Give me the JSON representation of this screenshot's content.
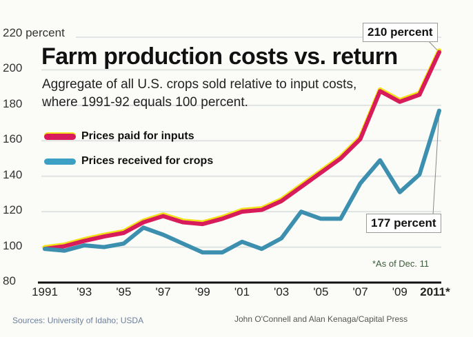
{
  "chart_data": {
    "type": "line",
    "title": "Farm production costs vs. return",
    "subtitle": "Aggregate of all U.S. crops sold relative to input costs, where 1991-92 equals 100 percent.",
    "ylabel": "220 percent",
    "ylim": [
      80,
      220
    ],
    "yticks": [
      80,
      100,
      120,
      140,
      160,
      180,
      200
    ],
    "ytick_labels": [
      "80",
      "100",
      "120",
      "140",
      "160",
      "180",
      "200"
    ],
    "ytop_label": "220 percent",
    "xlim": [
      1991,
      2011
    ],
    "xticks": [
      1991,
      1993,
      1995,
      1997,
      1999,
      2001,
      2003,
      2005,
      2007,
      2009,
      2011
    ],
    "xtick_labels": [
      "1991",
      "'93",
      "'95",
      "'97",
      "'99",
      "'01",
      "'03",
      "'05",
      "'07",
      "'09",
      "2011*"
    ],
    "x": [
      1991,
      1992,
      1993,
      1994,
      1995,
      1996,
      1997,
      1998,
      1999,
      2000,
      2001,
      2002,
      2003,
      2004,
      2005,
      2006,
      2007,
      2008,
      2009,
      2010,
      2011
    ],
    "grid": true,
    "legend_position": "top-left",
    "series": [
      {
        "name": "Prices paid for inputs",
        "color": "#d81b5a",
        "outline": "#f2e21c",
        "values": [
          99,
          100.5,
          103.5,
          106,
          108,
          114,
          117.5,
          114,
          113,
          116,
          120,
          121,
          126,
          134,
          142,
          150,
          161,
          188,
          182,
          186,
          210
        ]
      },
      {
        "name": "Prices received for crops",
        "color": "#3c8fae",
        "values": [
          99,
          98,
          101,
          100,
          102,
          111,
          107,
          102,
          97,
          97,
          103,
          99,
          105,
          120,
          116,
          116,
          136,
          149,
          131,
          141,
          177
        ]
      }
    ],
    "annotations": [
      {
        "text": "210 percent",
        "series": 0,
        "x": 2011
      },
      {
        "text": "177 percent",
        "series": 1,
        "x": 2011
      }
    ],
    "note": "*As of Dec. 11",
    "source": "Sources: University of Idaho; USDA",
    "credit": "John O'Connell and Alan Kenaga/Capital Press"
  }
}
